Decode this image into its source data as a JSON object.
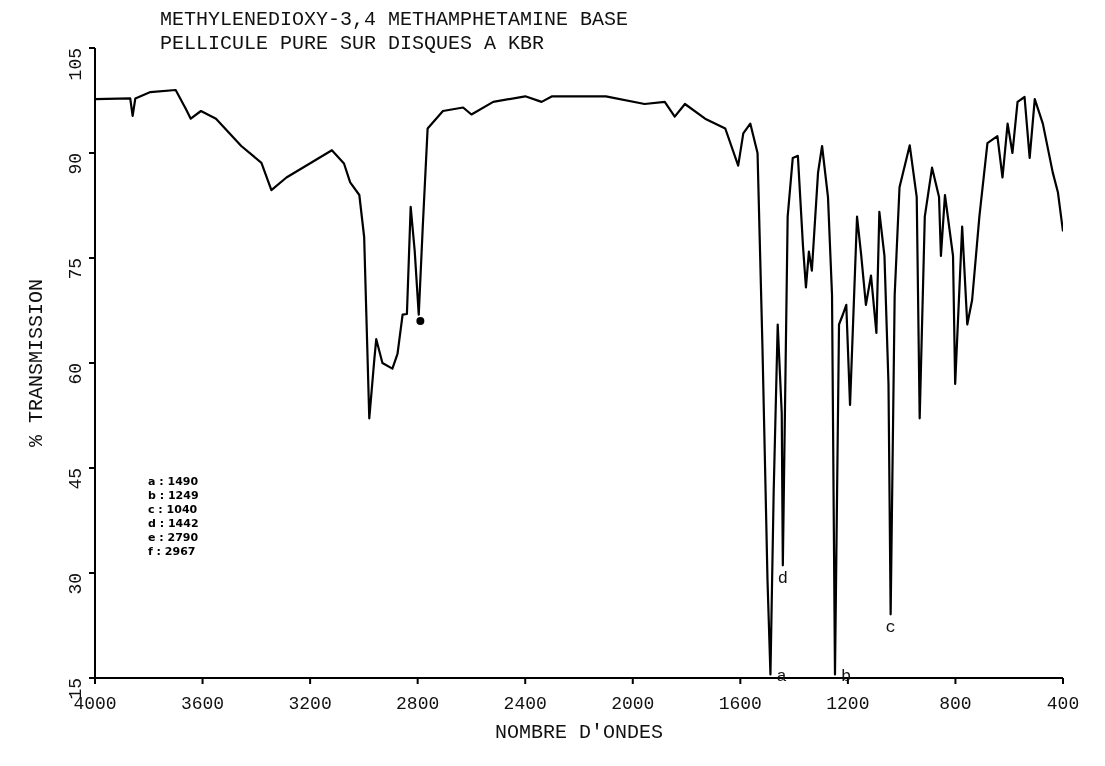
{
  "chart_data": {
    "type": "line",
    "title": "METHYLENEDIOXY-3,4 METHAMPHETAMINE BASE",
    "subtitle": "PELLICULE PURE SUR DISQUES A KBR",
    "xlabel": "NOMBRE D'ONDES",
    "ylabel": "% TRANSMISSION",
    "xlim": [
      4000,
      400
    ],
    "xticks": [
      4000,
      3600,
      3200,
      2800,
      2400,
      2000,
      1600,
      1200,
      800,
      400
    ],
    "ylim": [
      15,
      105
    ],
    "yticks": [
      15,
      30,
      45,
      60,
      75,
      90,
      105
    ],
    "series": [
      {
        "color": "#000000",
        "marker": "none",
        "x": [
          4000,
          3869,
          3860,
          3850,
          3794,
          3700,
          3662,
          3644,
          3606,
          3550,
          3456,
          3381,
          3344,
          3288,
          3119,
          3074,
          3051,
          3017,
          2999,
          2980,
          2961,
          2954,
          2931,
          2894,
          2875,
          2856,
          2840,
          2826,
          2811,
          2796,
          2781,
          2763,
          2706,
          2631,
          2600,
          2519,
          2400,
          2339,
          2300,
          2100,
          1956,
          1881,
          1844,
          1806,
          1731,
          1656,
          1608,
          1589,
          1563,
          1536,
          1518,
          1506,
          1499,
          1488,
          1476,
          1461,
          1446,
          1442,
          1424,
          1405,
          1386,
          1367,
          1356,
          1345,
          1334,
          1311,
          1296,
          1274,
          1259,
          1248,
          1233,
          1218,
          1206,
          1192,
          1166,
          1151,
          1133,
          1114,
          1094,
          1083,
          1064,
          1049,
          1041,
          1026,
          1008,
          970,
          944,
          933,
          914,
          887,
          861,
          854,
          839,
          809,
          801,
          775,
          756,
          738,
          711,
          681,
          644,
          625,
          606,
          588,
          569,
          543,
          524,
          505,
          475,
          438,
          419,
          400
        ],
        "values": [
          97.7,
          97.8,
          95.3,
          97.8,
          98.7,
          99,
          96.3,
          94.9,
          96,
          94.9,
          91,
          88.6,
          84.7,
          86.5,
          90.4,
          88.5,
          85.8,
          84,
          78,
          52.1,
          60.6,
          63.4,
          60,
          59.2,
          61.3,
          66.9,
          67,
          82.3,
          76,
          66.9,
          79.5,
          93.5,
          96,
          96.5,
          95.5,
          97.3,
          98.1,
          97.3,
          98.1,
          98.1,
          97,
          97.3,
          95.2,
          97,
          94.9,
          93.5,
          88.2,
          92.8,
          94.2,
          90,
          62.7,
          41.6,
          29,
          15.5,
          41.6,
          65.5,
          52.8,
          31.1,
          80.9,
          89.3,
          89.6,
          76.7,
          70.8,
          75.9,
          73.2,
          87.2,
          91,
          83.7,
          69.7,
          15.5,
          65.5,
          67,
          68.3,
          54,
          80.9,
          75.6,
          68.3,
          72.5,
          64.3,
          81.6,
          75.3,
          57,
          24.1,
          69.7,
          85.1,
          91.1,
          83.7,
          52.1,
          80.9,
          87.9,
          83.7,
          75.3,
          84,
          75.3,
          57,
          79.5,
          65.5,
          69,
          80.9,
          91.4,
          92.4,
          86.5,
          94.2,
          90,
          97.3,
          98,
          89.3,
          97.7,
          94.2,
          87.2,
          84.4,
          78.8
        ]
      },
      {
        "type": "scatter",
        "color": "#000000",
        "marker": "circle",
        "x": [
          2790
        ],
        "values": [
          66
        ]
      }
    ],
    "annotations": [
      {
        "text": "a",
        "x": 1488,
        "y": 15.5
      },
      {
        "text": "b",
        "x": 1248,
        "y": 15.5
      },
      {
        "text": "c",
        "x": 1041,
        "y": 24.1
      },
      {
        "text": "d",
        "x": 1442,
        "y": 31.1
      },
      "a : 1490",
      "b : 1249",
      "c : 1040",
      "d : 1442",
      "e : 2790",
      "f : 2967"
    ]
  }
}
